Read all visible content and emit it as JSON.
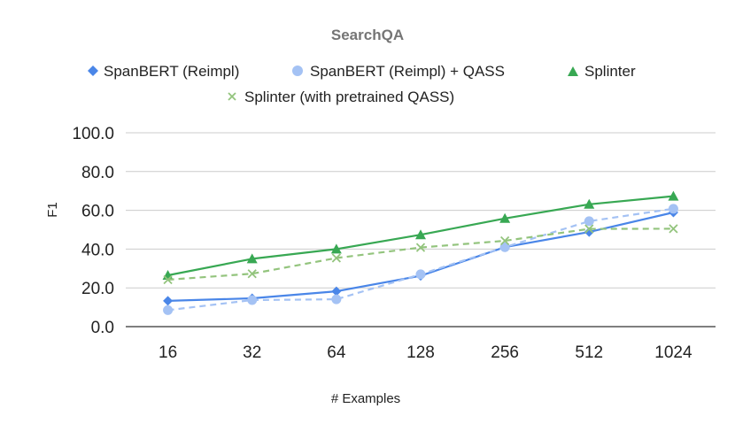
{
  "chart_data": {
    "type": "line",
    "title": "SearchQA",
    "xlabel": "# Examples",
    "ylabel": "F1",
    "categories": [
      "16",
      "32",
      "64",
      "128",
      "256",
      "512",
      "1024"
    ],
    "y_ticks": [
      "0.0",
      "20.0",
      "40.0",
      "60.0",
      "80.0",
      "100.0"
    ],
    "ylim": [
      0,
      100
    ],
    "grid": true,
    "legend_position": "top",
    "series": [
      {
        "name": "SpanBERT (Reimpl)",
        "values": [
          13.3,
          14.6,
          18.2,
          26.2,
          41.0,
          48.8,
          58.9
        ],
        "color": "#4a86e8",
        "marker": "diamond",
        "dash": "solid"
      },
      {
        "name": "SpanBERT (Reimpl) + QASS",
        "values": [
          8.5,
          13.7,
          14.1,
          27.0,
          41.0,
          54.4,
          60.8
        ],
        "color": "#a4c2f4",
        "marker": "circle",
        "dash": "dashed"
      },
      {
        "name": "Splinter",
        "values": [
          26.5,
          35.0,
          40.0,
          47.4,
          55.8,
          63.1,
          67.3
        ],
        "color": "#38a853",
        "marker": "triangle",
        "dash": "solid"
      },
      {
        "name": "Splinter (with pretrained QASS)",
        "values": [
          24.2,
          27.3,
          35.4,
          40.8,
          44.3,
          50.4,
          50.5
        ],
        "color": "#93c47d",
        "marker": "x",
        "dash": "dashed"
      }
    ]
  }
}
